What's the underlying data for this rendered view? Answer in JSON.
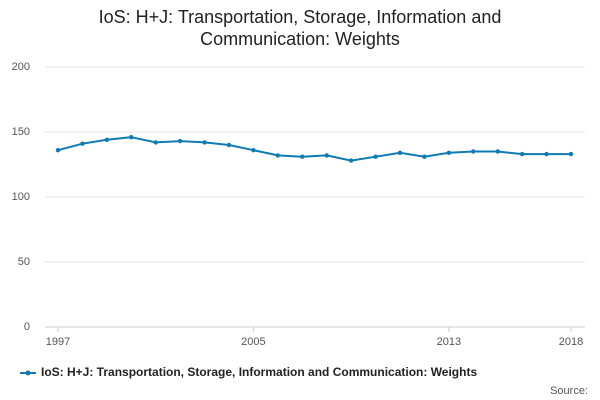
{
  "chart_data": {
    "type": "line",
    "title": "IoS: H+J: Transportation, Storage, Information and Communication: Weights",
    "x": [
      1997,
      1998,
      1999,
      2000,
      2001,
      2002,
      2003,
      2004,
      2005,
      2006,
      2007,
      2008,
      2009,
      2010,
      2011,
      2012,
      2013,
      2014,
      2015,
      2016,
      2017,
      2018
    ],
    "series": [
      {
        "name": "IoS: H+J: Transportation, Storage, Information and Communication: Weights",
        "color": "#0e7bb5",
        "values": [
          136,
          141,
          144,
          146,
          142,
          143,
          142,
          140,
          136,
          132,
          131,
          132,
          128,
          131,
          134,
          131,
          134,
          135,
          135,
          133,
          133,
          133
        ]
      }
    ],
    "xlim": [
      1997,
      2018
    ],
    "xticks": [
      1997,
      2005,
      2013,
      2018
    ],
    "ylim": [
      0,
      200
    ],
    "yticks": [
      0,
      50,
      100,
      150,
      200
    ],
    "grid": true,
    "source": "Source:"
  }
}
